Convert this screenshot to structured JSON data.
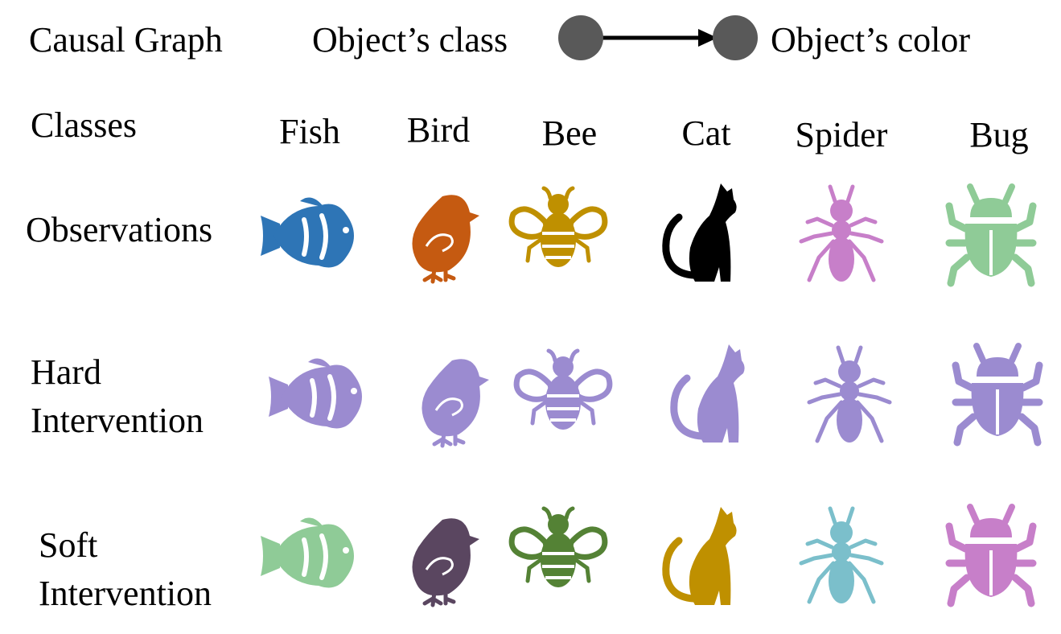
{
  "causal_graph": {
    "label": "Causal Graph",
    "cause": "Object’s class",
    "effect": "Object’s color"
  },
  "classes_label": "Classes",
  "classes": [
    "Fish",
    "Bird",
    "Bee",
    "Cat",
    "Spider",
    "Bug"
  ],
  "icon_names": [
    "fish-icon",
    "bird-icon",
    "bee-icon",
    "cat-icon",
    "spider-icon",
    "bug-icon"
  ],
  "rows": [
    {
      "label_lines": [
        "Observations"
      ],
      "colors": [
        "#2e75b6",
        "#c55a11",
        "#bf9000",
        "#000000",
        "#c77fc9",
        "#8fcb97"
      ]
    },
    {
      "label_lines": [
        "Hard",
        "Intervention"
      ],
      "colors": [
        "#9b8bd0",
        "#9b8bd0",
        "#9b8bd0",
        "#9b8bd0",
        "#9b8bd0",
        "#9b8bd0"
      ]
    },
    {
      "label_lines": [
        "Soft",
        "Intervention"
      ],
      "colors": [
        "#8fcb97",
        "#5a4660",
        "#548235",
        "#bf9000",
        "#7bbfcb",
        "#c77fc9"
      ]
    }
  ],
  "node_color": "#595959"
}
